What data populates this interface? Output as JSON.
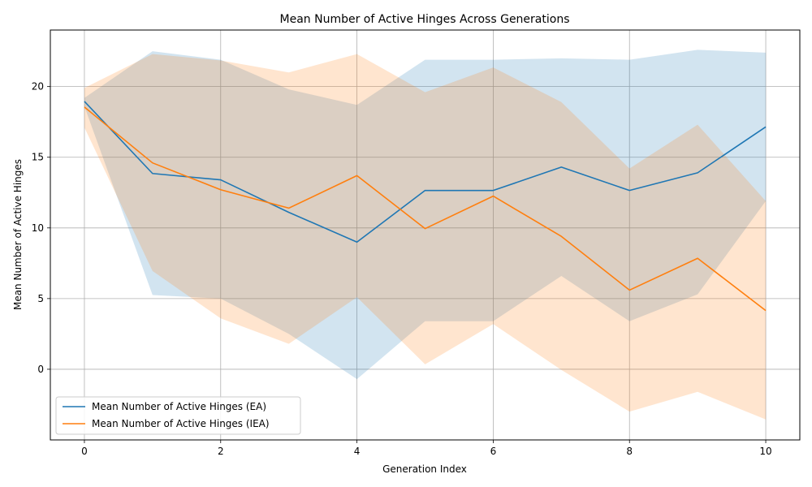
{
  "chart_data": {
    "type": "line",
    "title": "Mean Number of Active Hinges Across Generations",
    "xlabel": "Generation Index",
    "ylabel": "Mean Number of Active Hinges",
    "xlim": [
      -0.5,
      10.5
    ],
    "ylim": [
      -5,
      24
    ],
    "xticks": [
      0,
      2,
      4,
      6,
      8,
      10
    ],
    "yticks": [
      0,
      5,
      10,
      15,
      20
    ],
    "grid": true,
    "legend_position": "lower-left",
    "x": [
      0,
      1,
      2,
      3,
      4,
      5,
      6,
      7,
      8,
      9,
      10
    ],
    "series": [
      {
        "name": "Mean Number of Active Hinges (EA)",
        "color": "#1f77b4",
        "band_color": "#1f77b4",
        "values": [
          18.95,
          13.85,
          13.4,
          11.1,
          9.0,
          12.65,
          12.65,
          14.3,
          12.65,
          13.9,
          17.15
        ],
        "band_upper": [
          19.2,
          22.5,
          21.9,
          19.8,
          18.7,
          21.9,
          21.9,
          22.0,
          21.9,
          22.6,
          22.4
        ],
        "band_lower": [
          18.6,
          5.25,
          5.0,
          2.5,
          -0.7,
          3.4,
          3.4,
          6.6,
          3.4,
          5.3,
          11.9
        ]
      },
      {
        "name": "Mean Number of Active Hinges (IEA)",
        "color": "#ff7f0e",
        "band_color": "#ff7f0e",
        "values": [
          18.55,
          14.6,
          12.7,
          11.4,
          13.7,
          9.95,
          12.25,
          9.4,
          5.6,
          7.85,
          4.15
        ],
        "band_upper": [
          19.9,
          22.3,
          21.85,
          21.0,
          22.3,
          19.6,
          21.35,
          18.9,
          14.2,
          17.3,
          11.9
        ],
        "band_lower": [
          17.1,
          6.95,
          3.6,
          1.8,
          5.1,
          0.35,
          3.2,
          -0.05,
          -3.0,
          -1.6,
          -3.55
        ]
      }
    ]
  }
}
